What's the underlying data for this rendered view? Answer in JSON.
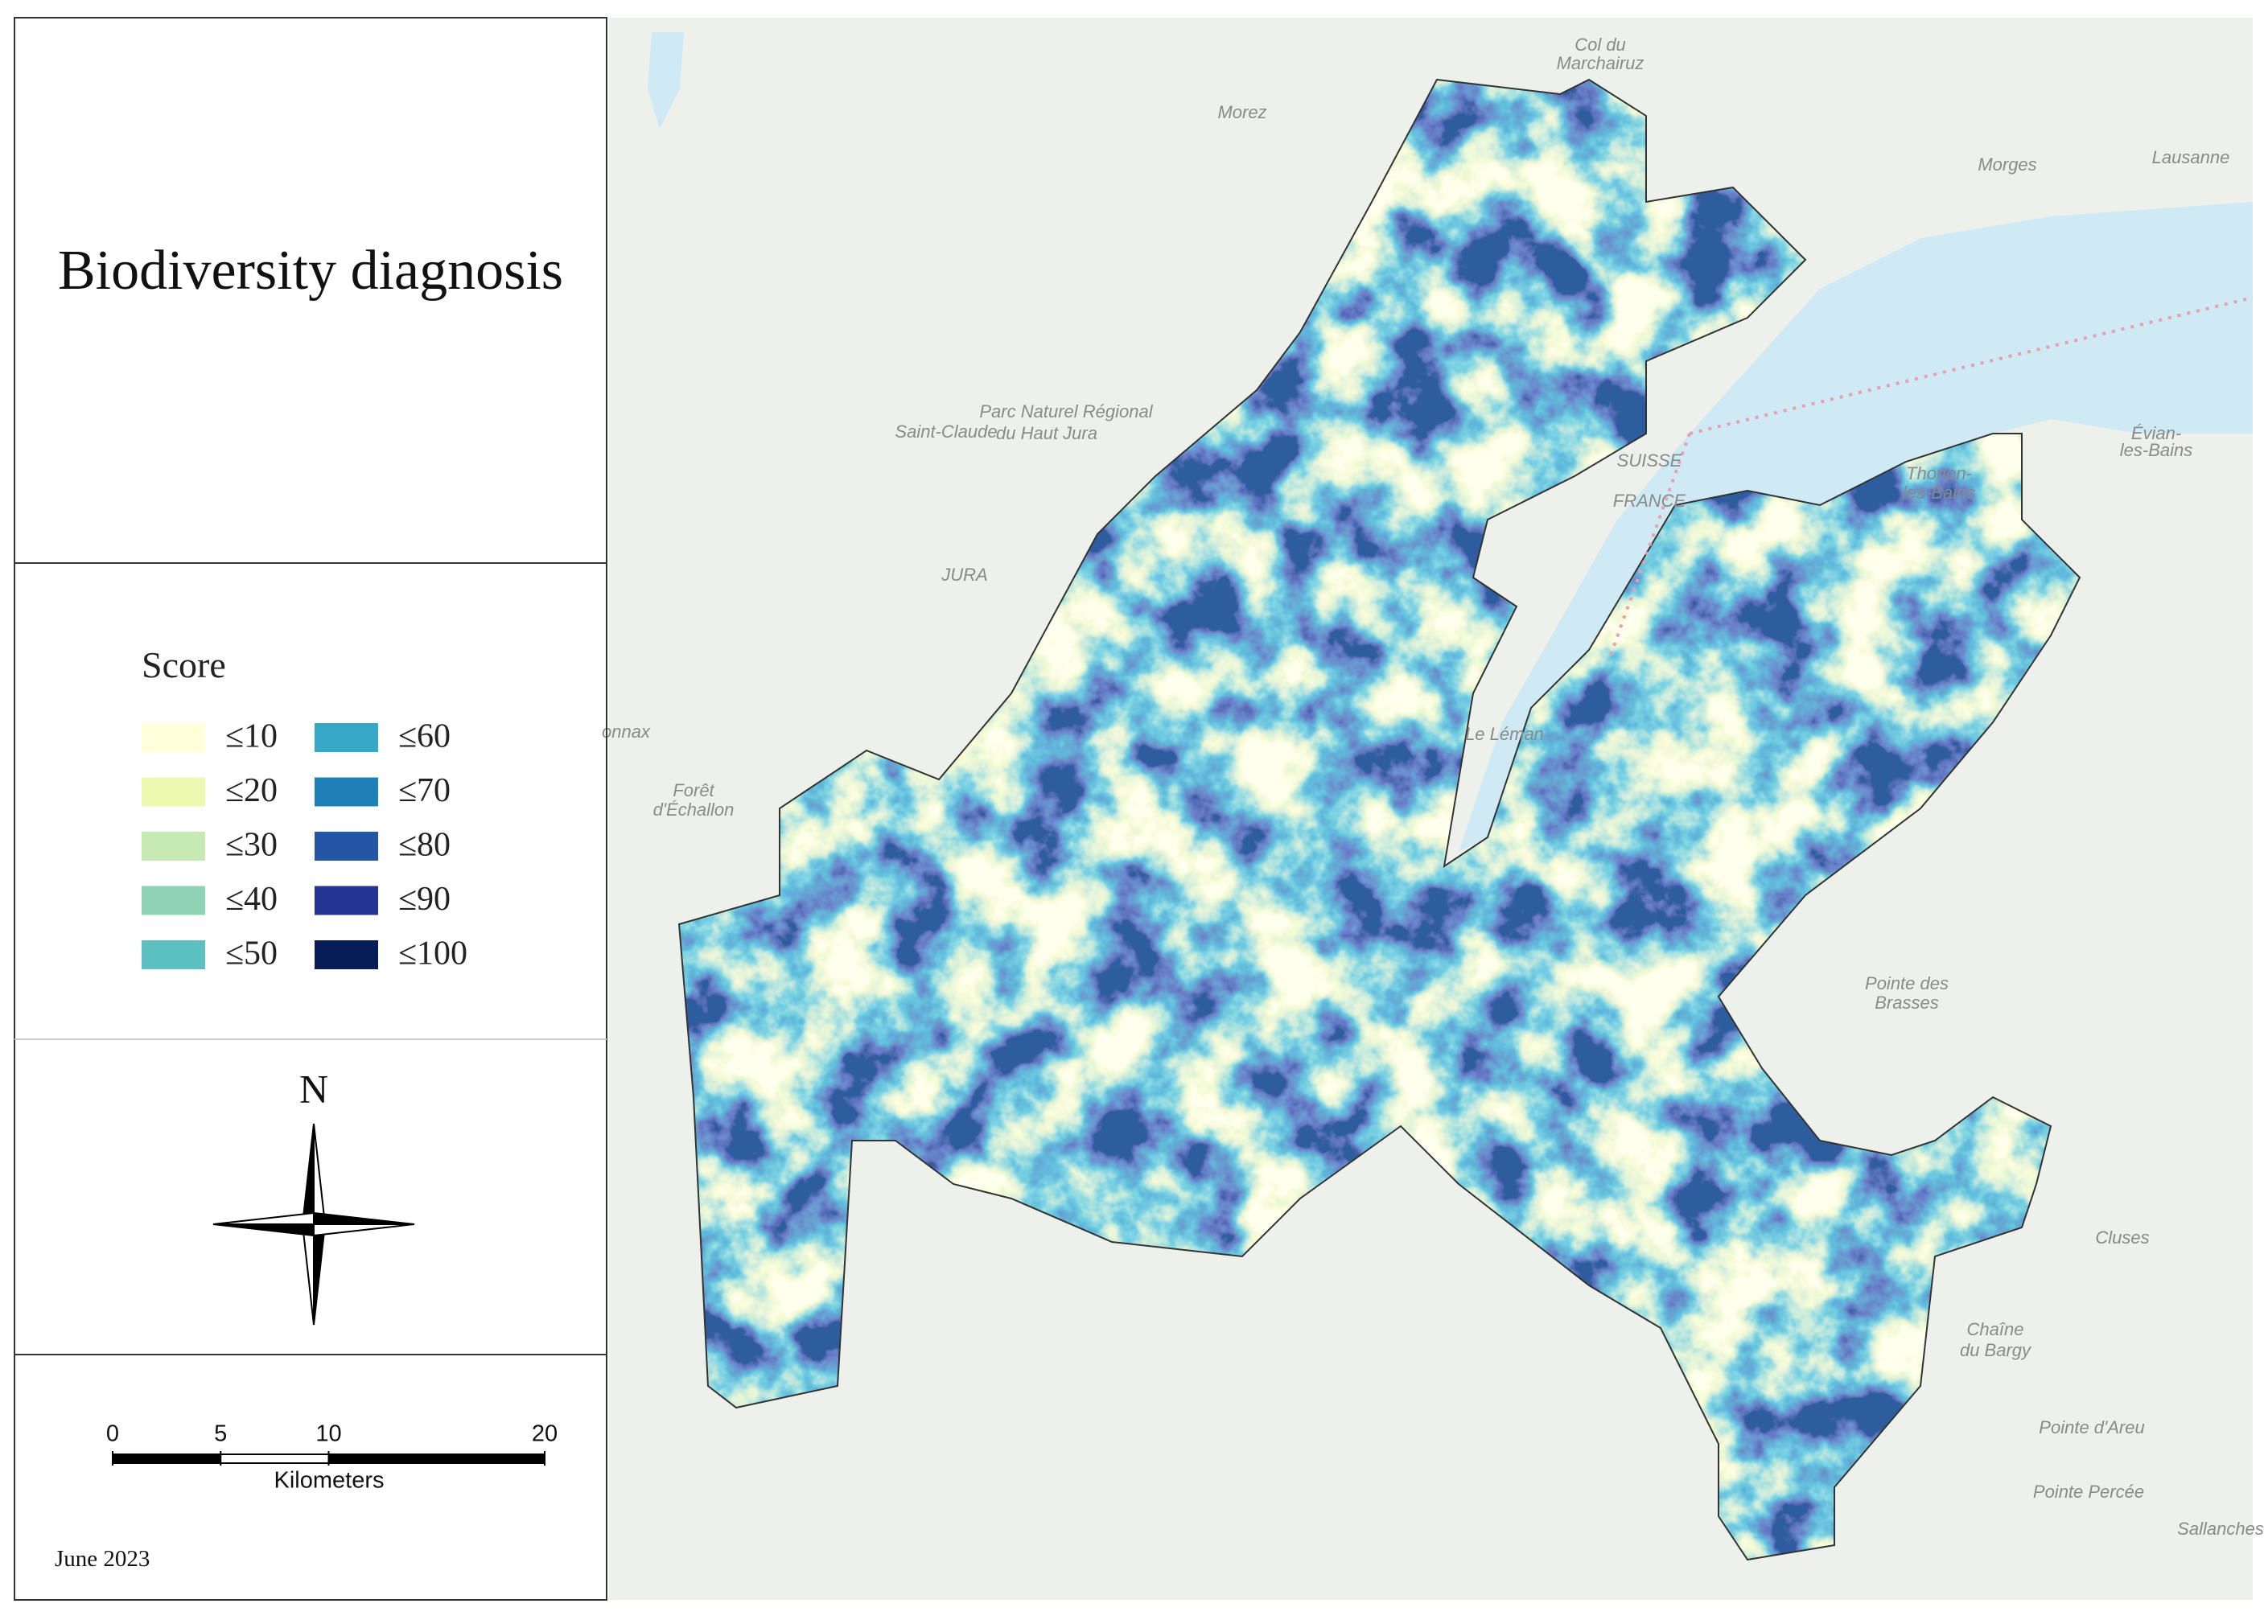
{
  "header": {
    "title": "Biodiversity diagnosis"
  },
  "legend": {
    "title": "Score",
    "items": [
      {
        "label": "≤10",
        "color": "#ffffd9"
      },
      {
        "label": "≤20",
        "color": "#edf8b1"
      },
      {
        "label": "≤30",
        "color": "#c7e9b4"
      },
      {
        "label": "≤40",
        "color": "#8fd3b6"
      },
      {
        "label": "≤50",
        "color": "#5cc0c0"
      },
      {
        "label": "≤60",
        "color": "#35a8c8"
      },
      {
        "label": "≤70",
        "color": "#1f80b8"
      },
      {
        "label": "≤80",
        "color": "#2356a4"
      },
      {
        "label": "≤90",
        "color": "#253494"
      },
      {
        "label": "≤100",
        "color": "#081d58"
      }
    ]
  },
  "north_arrow": {
    "label": "N"
  },
  "scale_bar": {
    "ticks": [
      0,
      5,
      10,
      20
    ],
    "unit": "Kilometers"
  },
  "date": "June 2023",
  "map": {
    "labels": [
      "Col du",
      "Marchairuz",
      "Morez",
      "Morges",
      "Lausanne",
      "Parc Naturel Régional",
      "du Haut Jura",
      "Saint-Claude",
      "JURA",
      "Évian-",
      "les-Bains",
      "Thonon-",
      "les-Bains",
      "SUISSE",
      "FRANCE",
      "Le Léman",
      "Forêt",
      "d'Échallon",
      "onnax",
      "Pointe des",
      "Brasses",
      "Chaîne",
      "du Bargy",
      "Pointe d'Areu",
      "Pointe Percée",
      "Cluses",
      "Sallanches"
    ]
  }
}
